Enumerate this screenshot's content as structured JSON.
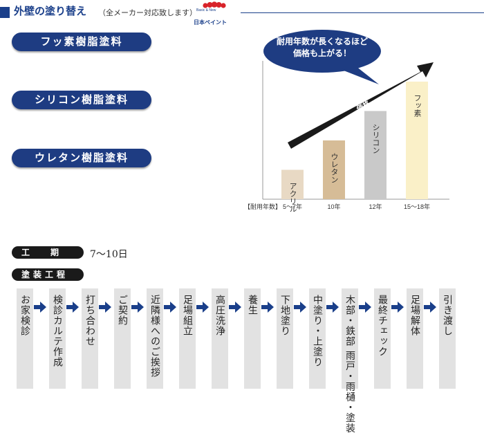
{
  "header": {
    "title": "外壁の塗り替え",
    "subtitle": "（全メーカー対応致します）",
    "logo_tagline": "Basic & New",
    "logo_text": "日本ペイント"
  },
  "paints": [
    "フッ素樹脂塗料",
    "シリコン樹脂塗料",
    "ウレタン樹脂塗料"
  ],
  "chart_data": {
    "type": "bar",
    "callout": "耐用年数が長くなるほど\n価格も上がる！",
    "arrow_label": "価格",
    "xlabel": "【耐用年数】",
    "bar_labels": [
      "アクリル",
      "ウレタン",
      "シリコン",
      "フッ素"
    ],
    "categories": [
      "5〜7年",
      "10年",
      "12年",
      "15〜18年"
    ],
    "values": [
      2,
      4,
      6,
      8
    ],
    "colors": [
      "#e8d9c4",
      "#d6bc97",
      "#c9c9c9",
      "#faf0c8"
    ]
  },
  "schedule": {
    "period_label": "工　　期",
    "period_value": "7〜10日",
    "process_label": "塗装工程",
    "steps": [
      "お家検診",
      "検診カルテ作成",
      "打ち合わせ",
      "ご契約",
      "近隣様へのご挨拶",
      "足場組立",
      "高圧洗浄",
      "養生",
      "下地塗り",
      "中塗り・上塗り",
      "木部・鉄部 雨戸・雨樋・塗装",
      "最終チェック",
      "足場解体",
      "引き渡し"
    ]
  },
  "colors": {
    "brand_navy": "#1e3c82",
    "label_black": "#1a1a1a",
    "step_gray": "#e2e2e2",
    "arrow_blue": "#1a3f8a"
  }
}
